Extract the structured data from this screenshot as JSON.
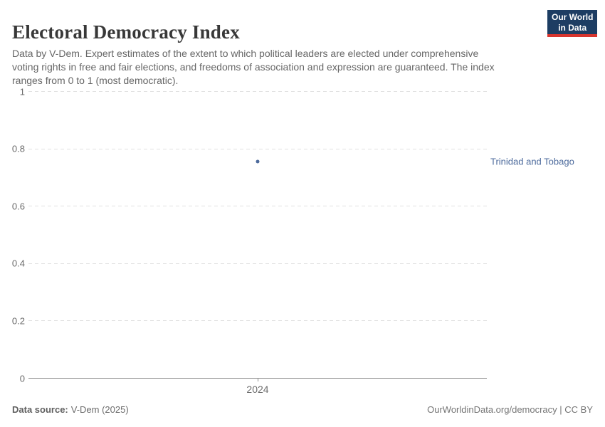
{
  "header": {
    "title": "Electoral Democracy Index",
    "subtitle": "Data by V-Dem. Expert estimates of the extent to which political leaders are elected under comprehensive\nvoting rights in free and fair elections, and freedoms of association and expression are guaranteed. The index\nranges from 0 to 1 (most democratic).",
    "logo": {
      "line1": "Our World",
      "line2": "in Data"
    }
  },
  "chart_data": {
    "type": "scatter",
    "title": "Electoral Democracy Index",
    "x": [
      2024
    ],
    "xtick_labels": [
      "2024"
    ],
    "series": [
      {
        "name": "Trinidad and Tobago",
        "values": [
          0.75
        ],
        "color": "#4C6A9C"
      }
    ],
    "ylim": [
      0,
      1
    ],
    "yticks": [
      0,
      0.2,
      0.4,
      0.6,
      0.8,
      1
    ],
    "xlabel": "",
    "ylabel": "",
    "grid": "horizontal-dashed",
    "legend_position": "right-of-point"
  },
  "footer": {
    "source_label": "Data source:",
    "source_value": "V-Dem (2025)",
    "credit": "OurWorldinData.org/democracy | CC BY"
  },
  "colors": {
    "accent": "#4C6A9C",
    "logo_background": "#1d3d63",
    "logo_stripe": "#d8352e",
    "gridline": "#e0e0e0",
    "axis": "#8f8f8f"
  }
}
